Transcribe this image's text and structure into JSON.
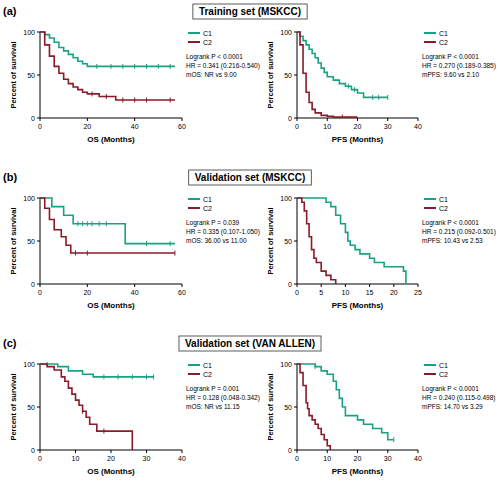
{
  "chart_data": [
    {
      "type": "line",
      "line_style": "step",
      "panel": "(a)",
      "title": "Training set (MSKCC)",
      "x_label": "OS (Months)",
      "y_label": "Percent of survival",
      "xlim": [
        0,
        60
      ],
      "xticks": [
        0,
        20,
        40,
        60
      ],
      "ylim": [
        0,
        100
      ],
      "yticks": [
        0,
        50,
        100
      ],
      "legend": "upper right",
      "annotations": [
        "Logrank P < 0.0001",
        "HR = 0.341 (0.216-0.540)",
        "mOS: NR vs 9.00"
      ],
      "series": [
        {
          "name": "C1",
          "color": "#19a184",
          "x": [
            0,
            2,
            4,
            6,
            8,
            10,
            12,
            14,
            16,
            18,
            20,
            57
          ],
          "values": [
            100,
            97,
            93,
            88,
            82,
            78,
            74,
            70,
            66,
            63,
            60,
            60
          ],
          "censored": [
            24,
            30,
            35,
            40,
            45,
            50,
            55
          ]
        },
        {
          "name": "C2",
          "color": "#8b1a2b",
          "x": [
            0,
            2,
            4,
            6,
            8,
            10,
            12,
            14,
            16,
            18,
            20,
            25,
            32,
            57
          ],
          "values": [
            100,
            85,
            72,
            60,
            52,
            45,
            40,
            36,
            33,
            30,
            28,
            25,
            21,
            21
          ],
          "censored": [
            22,
            28,
            35,
            40,
            45,
            55
          ]
        }
      ]
    },
    {
      "type": "line",
      "line_style": "step",
      "x_label": "PFS (Months)",
      "y_label": "Percent of survival",
      "xlim": [
        0,
        40
      ],
      "xticks": [
        0,
        10,
        20,
        30,
        40
      ],
      "ylim": [
        0,
        100
      ],
      "yticks": [
        0,
        50,
        100
      ],
      "legend": "upper right",
      "annotations": [
        "Logrank P < 0.0001",
        "HR = 0.270 (0.189-0.385)",
        "mPFS: 9.60 vs 2.10"
      ],
      "series": [
        {
          "name": "C1",
          "color": "#19a184",
          "x": [
            0,
            1,
            2,
            3,
            4,
            5,
            6,
            7,
            8,
            9,
            10,
            12,
            14,
            16,
            18,
            20,
            22,
            30
          ],
          "values": [
            100,
            95,
            90,
            85,
            80,
            75,
            70,
            64,
            58,
            53,
            48,
            44,
            40,
            37,
            33,
            29,
            24,
            24
          ],
          "censored": [
            17,
            19,
            25,
            27,
            30
          ]
        },
        {
          "name": "C2",
          "color": "#8b1a2b",
          "x": [
            0,
            1,
            2,
            3,
            4,
            5,
            6,
            8,
            10,
            12,
            20
          ],
          "values": [
            100,
            85,
            52,
            30,
            18,
            10,
            6,
            3,
            2,
            1,
            1
          ],
          "censored": [
            15
          ]
        }
      ]
    },
    {
      "type": "line",
      "line_style": "step",
      "panel": "(b)",
      "title": "Validation set (MSKCC)",
      "x_label": "OS (Months)",
      "y_label": "Percent of survival",
      "xlim": [
        0,
        60
      ],
      "xticks": [
        0,
        20,
        40,
        60
      ],
      "ylim": [
        0,
        100
      ],
      "yticks": [
        0,
        50,
        100
      ],
      "legend": "upper right",
      "annotations": [
        "Logrank P = 0.039",
        "HR = 0.335 (0.107-1.050)",
        "mOS: 36.00 vs 11.00"
      ],
      "series": [
        {
          "name": "C1",
          "color": "#19a184",
          "x": [
            0,
            5,
            10,
            14,
            36,
            57
          ],
          "values": [
            100,
            90,
            80,
            70,
            47,
            47
          ],
          "censored": [
            16,
            18,
            20,
            22,
            25,
            28,
            45,
            55
          ]
        },
        {
          "name": "C2",
          "color": "#8b1a2b",
          "x": [
            0,
            2,
            4,
            6,
            9,
            11,
            13,
            57
          ],
          "values": [
            100,
            88,
            75,
            63,
            55,
            45,
            36,
            36
          ],
          "censored": [
            15,
            20,
            57
          ]
        }
      ]
    },
    {
      "type": "line",
      "line_style": "step",
      "x_label": "PFS (Months)",
      "y_label": "Percent of survival",
      "xlim": [
        0,
        25
      ],
      "xticks": [
        0,
        5,
        10,
        15,
        20,
        25
      ],
      "ylim": [
        0,
        100
      ],
      "yticks": [
        0,
        50,
        100
      ],
      "legend": "upper right",
      "annotations": [
        "Logrank P < 0.0001",
        "HR = 0.215 (0.092-0.501)",
        "mPFS: 10.43 vs 2.53"
      ],
      "series": [
        {
          "name": "C1",
          "color": "#19a184",
          "x": [
            0,
            6,
            7,
            8,
            9,
            10,
            10.5,
            11,
            12,
            13,
            15,
            16,
            18,
            22,
            22.5
          ],
          "values": [
            100,
            95,
            90,
            80,
            70,
            60,
            50,
            45,
            40,
            35,
            30,
            25,
            20,
            15,
            0
          ]
        },
        {
          "name": "C2",
          "color": "#8b1a2b",
          "x": [
            0,
            1,
            1.5,
            2,
            2.5,
            3,
            3.5,
            4,
            5,
            6,
            7,
            8
          ],
          "values": [
            100,
            95,
            85,
            70,
            55,
            40,
            30,
            25,
            15,
            10,
            5,
            0
          ]
        }
      ]
    },
    {
      "type": "line",
      "line_style": "step",
      "panel": "(c)",
      "title": "Validation set (VAN ALLEN)",
      "x_label": "OS (Months)",
      "y_label": "Percent of survival",
      "xlim": [
        0,
        40
      ],
      "xticks": [
        0,
        10,
        20,
        30,
        40
      ],
      "ylim": [
        0,
        100
      ],
      "yticks": [
        0,
        50,
        100
      ],
      "legend": "upper right",
      "annotations": [
        "Logrank P = 0.001",
        "HR = 0.128 (0.048-0.342)",
        "mOS: NR vs 11.15"
      ],
      "series": [
        {
          "name": "C1",
          "color": "#19a184",
          "x": [
            0,
            5,
            8,
            12,
            15,
            32
          ],
          "values": [
            100,
            97,
            92,
            88,
            85,
            85
          ],
          "censored": [
            2,
            18,
            22,
            26,
            30,
            32
          ]
        },
        {
          "name": "C2",
          "color": "#8b1a2b",
          "x": [
            0,
            2,
            4,
            6,
            7,
            8,
            9,
            10,
            11,
            12,
            13,
            14,
            16,
            26
          ],
          "values": [
            100,
            97,
            93,
            85,
            80,
            72,
            65,
            58,
            52,
            45,
            38,
            30,
            22,
            0
          ],
          "censored": [
            12,
            18
          ]
        }
      ]
    },
    {
      "type": "line",
      "line_style": "step",
      "x_label": "PFS (Months)",
      "y_label": "Percent of survival",
      "xlim": [
        0,
        40
      ],
      "xticks": [
        0,
        10,
        20,
        30,
        40
      ],
      "ylim": [
        0,
        100
      ],
      "yticks": [
        0,
        50,
        100
      ],
      "legend": "upper right",
      "annotations": [
        "Logrank P < 0.0001",
        "HR = 0.240 (0.115-0.498)",
        "mPFS: 14.70 vs 3.29"
      ],
      "series": [
        {
          "name": "C1",
          "color": "#19a184",
          "x": [
            0,
            6,
            8,
            10,
            12,
            13,
            14,
            15,
            16,
            20,
            22,
            25,
            28,
            30,
            32
          ],
          "values": [
            100,
            97,
            92,
            88,
            80,
            70,
            60,
            50,
            40,
            35,
            30,
            25,
            20,
            12,
            12
          ],
          "censored": [
            6,
            32
          ]
        },
        {
          "name": "C2",
          "color": "#8b1a2b",
          "x": [
            0,
            1,
            2,
            3,
            3.5,
            4,
            5,
            6,
            7,
            8,
            9,
            10,
            11
          ],
          "values": [
            100,
            90,
            75,
            55,
            48,
            40,
            35,
            30,
            25,
            18,
            12,
            5,
            0
          ]
        }
      ]
    }
  ]
}
